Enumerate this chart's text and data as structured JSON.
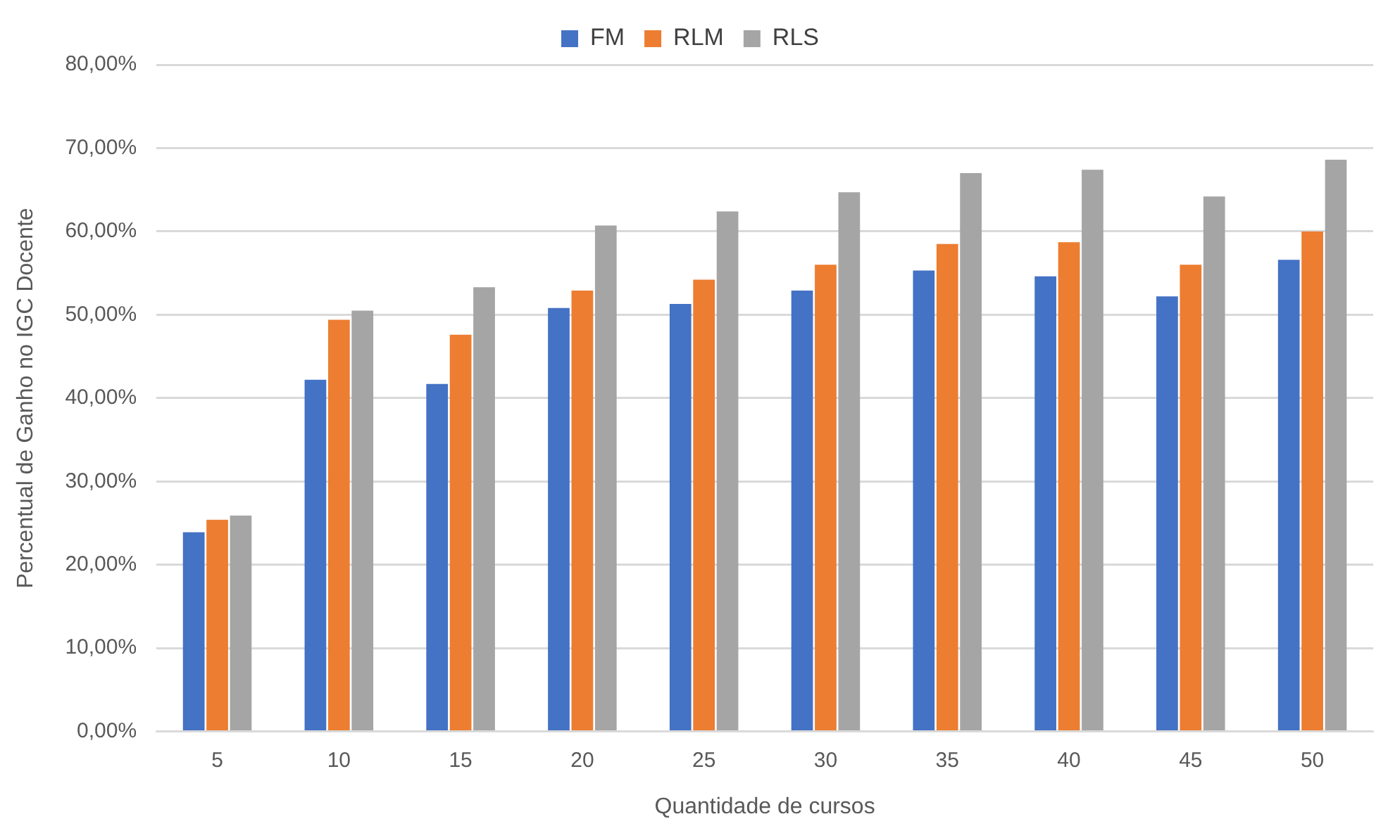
{
  "chart_data": {
    "type": "bar",
    "xlabel": "Quantidade de cursos",
    "ylabel": "Percentual de Ganho no IGC Docente",
    "categories": [
      "5",
      "10",
      "15",
      "20",
      "25",
      "30",
      "35",
      "40",
      "45",
      "50"
    ],
    "series": [
      {
        "name": "FM",
        "color": "#4472c4",
        "values": [
          23.9,
          42.2,
          41.7,
          50.8,
          51.3,
          52.9,
          55.3,
          54.6,
          52.2,
          56.6
        ]
      },
      {
        "name": "RLM",
        "color": "#ed7d31",
        "values": [
          25.4,
          49.4,
          47.6,
          52.9,
          54.2,
          56.0,
          58.5,
          58.7,
          56.0,
          60.0
        ]
      },
      {
        "name": "RLS",
        "color": "#a5a5a5",
        "values": [
          25.9,
          50.5,
          53.3,
          60.7,
          62.4,
          64.7,
          67.0,
          67.4,
          64.2,
          68.6
        ]
      }
    ],
    "ylim": [
      0,
      80
    ],
    "yticks": [
      {
        "value": 0,
        "label": "0,00%"
      },
      {
        "value": 10,
        "label": "10,00%"
      },
      {
        "value": 20,
        "label": "20,00%"
      },
      {
        "value": 30,
        "label": "30,00%"
      },
      {
        "value": 40,
        "label": "40,00%"
      },
      {
        "value": 50,
        "label": "50,00%"
      },
      {
        "value": 60,
        "label": "60,00%"
      },
      {
        "value": 70,
        "label": "70,00%"
      },
      {
        "value": 80,
        "label": "80,00%"
      }
    ],
    "grid": "y",
    "legend": "top"
  }
}
